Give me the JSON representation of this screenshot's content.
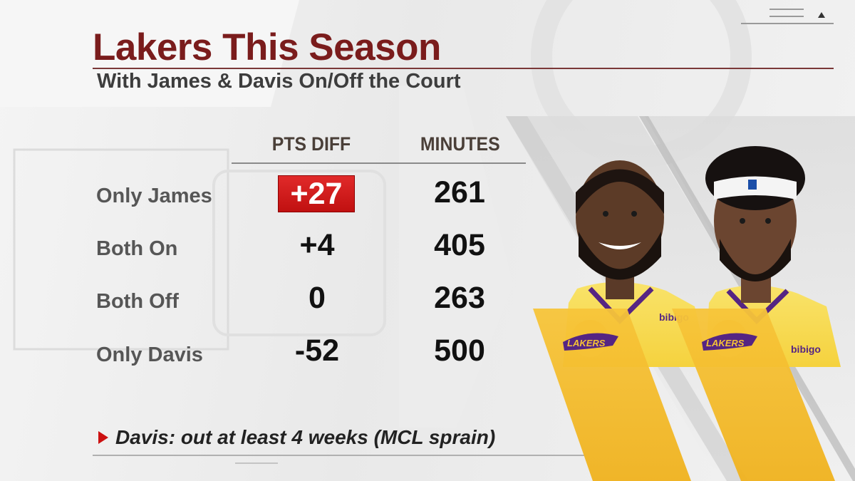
{
  "title": "Lakers This Season",
  "subtitle": "With James & Davis On/Off the Court",
  "columns": {
    "pts_diff": "PTS DIFF",
    "minutes": "MINUTES"
  },
  "rows": [
    {
      "label": "Only James",
      "pts_diff": "+27",
      "minutes": "261",
      "highlighted": true
    },
    {
      "label": "Both On",
      "pts_diff": "+4",
      "minutes": "405",
      "highlighted": false
    },
    {
      "label": "Both Off",
      "pts_diff": "0",
      "minutes": "263",
      "highlighted": false
    },
    {
      "label": "Only Davis",
      "pts_diff": "-52",
      "minutes": "500",
      "highlighted": false
    }
  ],
  "footnote": "Davis: out at least 4 weeks (MCL sprain)",
  "colors": {
    "title": "#7a1c1c",
    "highlight": "#d41f1f",
    "lakers_gold": "#f6c235",
    "lakers_purple": "#552583"
  },
  "players": [
    {
      "name_icon": "lebron-james-photo",
      "jersey_sponsor": "bibigo",
      "team_logo": "LAKERS"
    },
    {
      "name_icon": "anthony-davis-photo",
      "jersey_sponsor": "bibigo",
      "team_logo": "LAKERS"
    }
  ]
}
